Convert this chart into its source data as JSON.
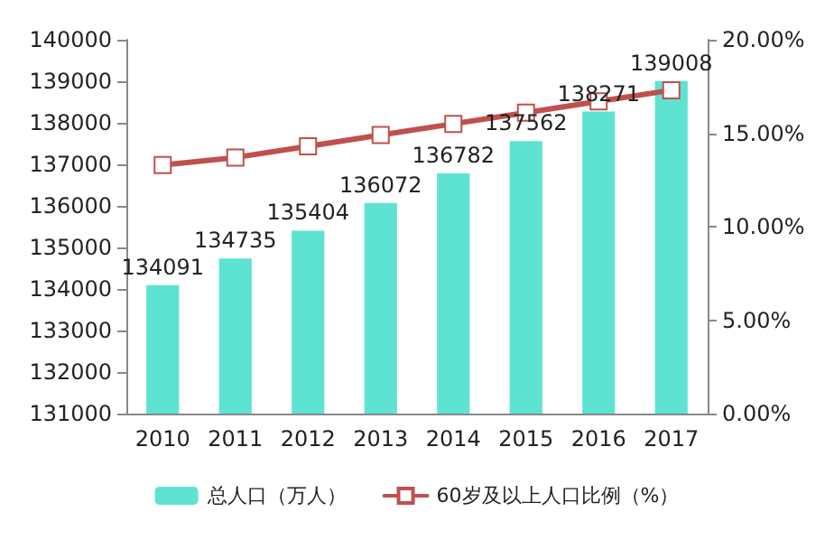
{
  "chart_data": {
    "type": "bar",
    "categories": [
      "2010",
      "2011",
      "2012",
      "2013",
      "2014",
      "2015",
      "2016",
      "2017"
    ],
    "series": [
      {
        "name": "总人口（万人）",
        "color": "#5ee3d3",
        "values": [
          134091,
          134735,
          135404,
          136072,
          136782,
          137562,
          138271,
          139008
        ],
        "data_labels": true
      },
      {
        "name": "60岁及以上人口比例（%）",
        "type": "line",
        "axis": "y2",
        "color": "#c0504d",
        "marker": "square",
        "values": [
          13.3,
          13.7,
          14.3,
          14.9,
          15.5,
          16.1,
          16.7,
          17.3
        ]
      }
    ],
    "ylim": [
      131000,
      140000
    ],
    "yticks": [
      131000,
      132000,
      133000,
      134000,
      135000,
      136000,
      137000,
      138000,
      139000,
      140000
    ],
    "y2lim": [
      0,
      20
    ],
    "y2ticks": [
      {
        "value": 0,
        "label": "0.00%"
      },
      {
        "value": 5,
        "label": "5.00%"
      },
      {
        "value": 10,
        "label": "10.00%"
      },
      {
        "value": 15,
        "label": "15.00%"
      },
      {
        "value": 20,
        "label": "20.00%"
      }
    ],
    "grid": false,
    "legend": "bottom"
  }
}
